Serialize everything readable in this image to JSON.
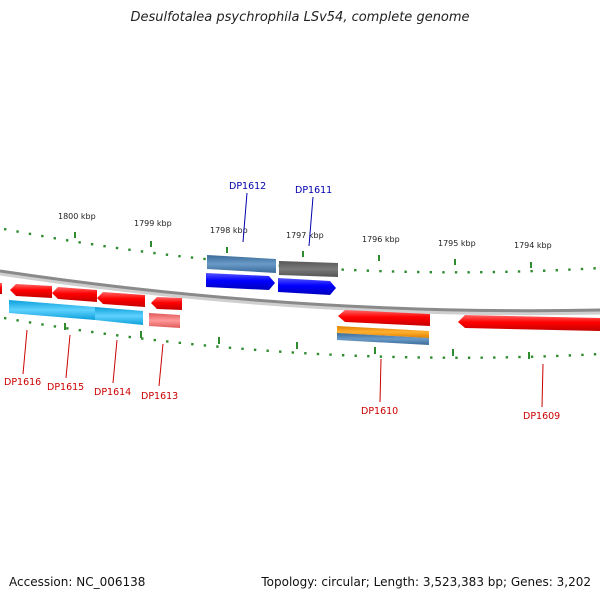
{
  "title": "Desulfotalea psychrophila LSv54, complete genome",
  "footer": {
    "accession": "Accession: NC_006138",
    "summary": "Topology: circular; Length: 3,523,383 bp; Genes: 3,202"
  },
  "ruler": {
    "unit": "kbp",
    "labels": [
      "1800 kbp",
      "1799 kbp",
      "1798 kbp",
      "1797 kbp",
      "1796 kbp",
      "1795 kbp",
      "1794 kbp"
    ]
  },
  "genes": {
    "upper": [
      {
        "label": "DP1612",
        "color": "#0000aa"
      },
      {
        "label": "DP1611",
        "color": "#0000aa"
      }
    ],
    "lower": [
      {
        "label": "DP1616",
        "color": "#cc0000"
      },
      {
        "label": "DP1615",
        "color": "#cc0000"
      },
      {
        "label": "DP1614",
        "color": "#cc0000"
      },
      {
        "label": "DP1613",
        "color": "#cc0000"
      },
      {
        "label": "DP1610",
        "color": "#cc0000"
      },
      {
        "label": "DP1609",
        "color": "#cc0000"
      }
    ]
  },
  "colors": {
    "ruler_ticks": "#2e8b2e",
    "backbone": "#888888",
    "forward_cds": "#0000ff",
    "reverse_cds": "#ff0000",
    "feature_steelblue": "#4a7fb0",
    "feature_gray": "#666666",
    "feature_cyan": "#1ab4e8",
    "feature_pink": "#ee7a7a",
    "feature_orange": "#ff9900"
  }
}
